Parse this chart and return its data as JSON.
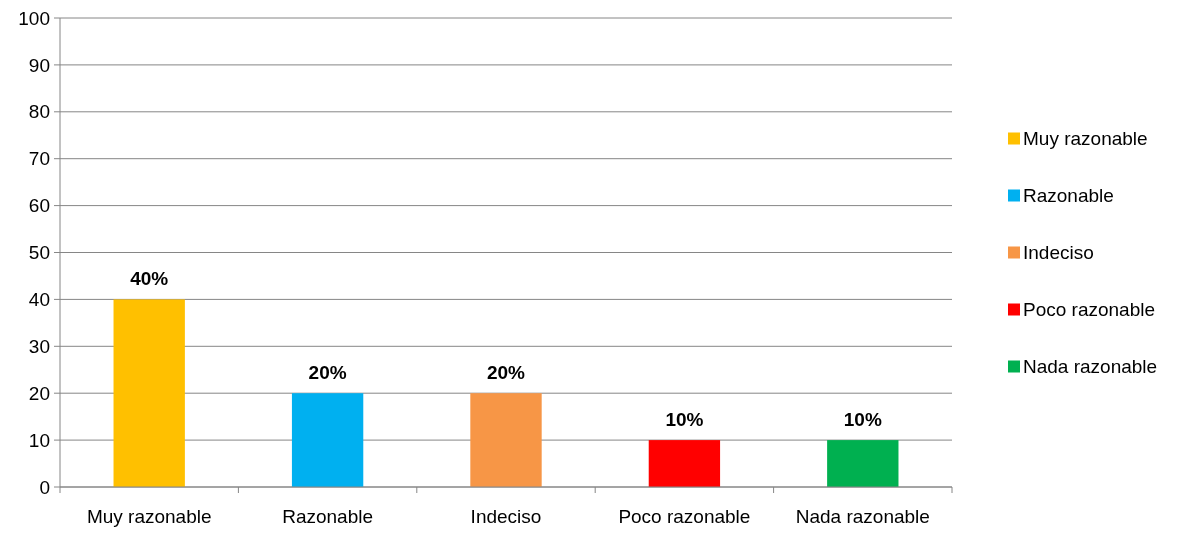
{
  "chart_data": {
    "type": "bar",
    "categories": [
      "Muy razonable",
      "Razonable",
      "Indeciso",
      "Poco razonable",
      "Nada razonable"
    ],
    "series": [
      {
        "name": "Muy razonable",
        "color": "#ffc000",
        "values": [
          40,
          null,
          null,
          null,
          null
        ],
        "value_labels": [
          "40%",
          null,
          null,
          null,
          null
        ]
      },
      {
        "name": "Razonable",
        "color": "#00b0f0",
        "values": [
          null,
          20,
          null,
          null,
          null
        ],
        "value_labels": [
          null,
          "20%",
          null,
          null,
          null
        ]
      },
      {
        "name": "Indeciso",
        "color": "#f79646",
        "values": [
          null,
          null,
          20,
          null,
          null
        ],
        "value_labels": [
          null,
          null,
          "20%",
          null,
          null
        ]
      },
      {
        "name": "Poco razonable",
        "color": "#ff0000",
        "values": [
          null,
          null,
          null,
          10,
          null
        ],
        "value_labels": [
          null,
          null,
          null,
          "10%",
          null
        ]
      },
      {
        "name": "Nada razonable",
        "color": "#00b050",
        "values": [
          null,
          null,
          null,
          null,
          10
        ],
        "value_labels": [
          null,
          null,
          null,
          null,
          "10%"
        ]
      }
    ],
    "ylim": [
      0,
      100
    ],
    "yticks": [
      0,
      10,
      20,
      30,
      40,
      50,
      60,
      70,
      80,
      90,
      100
    ],
    "grid": "y",
    "legend": "right"
  }
}
